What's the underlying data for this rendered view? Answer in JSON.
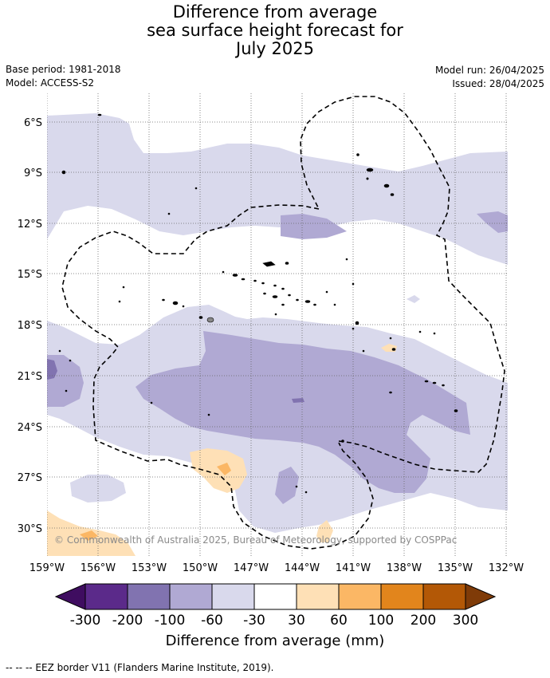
{
  "title": {
    "line1": "Difference from average",
    "line2": "sea surface height forecast for",
    "line3": "July 2025"
  },
  "meta": {
    "base_period": "Base period: 1981-2018",
    "model": "Model: ACCESS-S2",
    "model_run": "Model run: 26/04/2025",
    "issued": "Issued: 28/04/2025"
  },
  "map": {
    "lat_labels": [
      "6°S",
      "9°S",
      "12°S",
      "15°S",
      "18°S",
      "21°S",
      "24°S",
      "27°S",
      "30°S"
    ],
    "lon_labels": [
      "159°W",
      "156°W",
      "153°W",
      "150°W",
      "147°W",
      "144°W",
      "141°W",
      "138°W",
      "135°W",
      "132°W"
    ],
    "copyright": "© Commonwealth of Australia 2025, Bureau of Meteorology, supported by COSPPac"
  },
  "colorbar": {
    "tick_labels": [
      "-300",
      "-200",
      "-100",
      "-60",
      "-30",
      "30",
      "60",
      "100",
      "200",
      "300"
    ],
    "label": "Difference from average (mm)",
    "colors": [
      "#3f0d60",
      "#5b2a8a",
      "#8173b0",
      "#b0a9d3",
      "#d9d9ec",
      "#ffffff",
      "#fee0b6",
      "#fbb765",
      "#e2851c",
      "#b35806",
      "#7f3b08"
    ]
  },
  "footer": {
    "eez_legend": "--  --  -- EEZ border V11 (Flanders Marine Institute, 2019)."
  }
}
